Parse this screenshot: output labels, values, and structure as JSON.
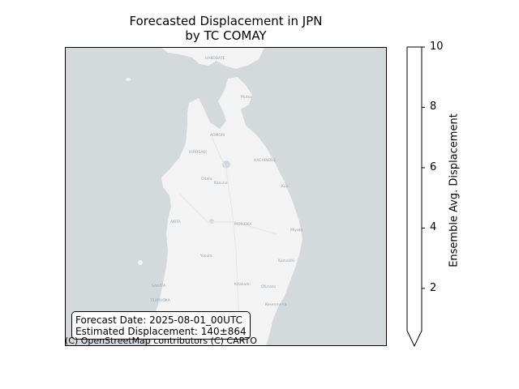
{
  "title": {
    "line1": "Forecasted Displacement in JPN",
    "line2": "by TC COMAY"
  },
  "info_box": {
    "forecast_date": "Forecast Date: 2025-08-01_00UTC",
    "estimated_displacement": "Estimated Displacement: 140±864"
  },
  "attribution": "(C) OpenStreetMap contributors (C) CARTO",
  "colorbar": {
    "label": "Ensemble Avg. Displacement",
    "ticks": [
      2,
      4,
      6,
      8,
      10
    ],
    "min": 0.6,
    "max": 10,
    "extend": "min",
    "fill_color": "#ffffff"
  },
  "map": {
    "water_color": "#d4dadc",
    "land_color": "#f2f3f2",
    "place_labels": [
      "HAKODATE",
      "Mutsu",
      "AOMORI",
      "HIROSAKI",
      "HACHINOHE",
      "Odate",
      "Kazuno",
      "Kuji",
      "AKITA",
      "MORIOKA",
      "Miyako",
      "Yokote",
      "Kamaishi",
      "Kitakami",
      "Ofunato",
      "SAKATA",
      "TSURUOKA",
      "Kesennuma"
    ]
  }
}
